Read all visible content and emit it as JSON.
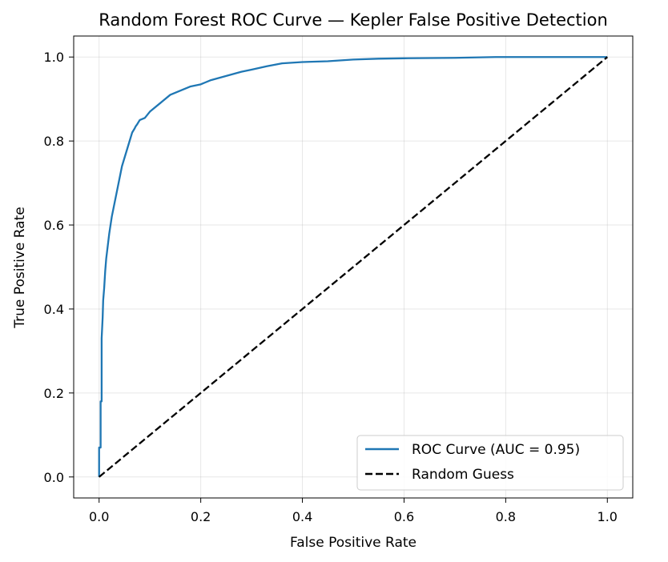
{
  "chart_data": {
    "type": "line",
    "title": "Random Forest ROC Curve — Kepler False Positive Detection",
    "xlabel": "False Positive Rate",
    "ylabel": "True Positive Rate",
    "xlim": [
      -0.05,
      1.05
    ],
    "ylim": [
      -0.05,
      1.05
    ],
    "grid": true,
    "legend_position": "lower-right",
    "xticks": [
      0.0,
      0.2,
      0.4,
      0.6,
      0.8,
      1.0
    ],
    "xtick_labels": [
      "0.0",
      "0.2",
      "0.4",
      "0.6",
      "0.8",
      "1.0"
    ],
    "yticks": [
      0.0,
      0.2,
      0.4,
      0.6,
      0.8,
      1.0
    ],
    "ytick_labels": [
      "0.0",
      "0.2",
      "0.4",
      "0.6",
      "0.8",
      "1.0"
    ],
    "series": [
      {
        "name": "ROC Curve (AUC = 0.95)",
        "color": "#1f77b4",
        "style": "solid",
        "x": [
          0.0,
          0.0,
          0.003,
          0.003,
          0.005,
          0.005,
          0.007,
          0.008,
          0.01,
          0.012,
          0.014,
          0.016,
          0.018,
          0.02,
          0.025,
          0.03,
          0.035,
          0.04,
          0.045,
          0.05,
          0.055,
          0.06,
          0.065,
          0.07,
          0.072,
          0.075,
          0.08,
          0.09,
          0.1,
          0.12,
          0.14,
          0.16,
          0.18,
          0.2,
          0.22,
          0.25,
          0.28,
          0.3,
          0.33,
          0.36,
          0.4,
          0.45,
          0.5,
          0.55,
          0.6,
          0.7,
          0.78,
          0.85,
          0.9,
          1.0
        ],
        "y": [
          0.0,
          0.07,
          0.07,
          0.18,
          0.18,
          0.33,
          0.38,
          0.42,
          0.45,
          0.49,
          0.52,
          0.54,
          0.56,
          0.58,
          0.62,
          0.65,
          0.68,
          0.71,
          0.74,
          0.76,
          0.78,
          0.8,
          0.82,
          0.83,
          0.835,
          0.84,
          0.85,
          0.855,
          0.87,
          0.89,
          0.91,
          0.92,
          0.93,
          0.935,
          0.945,
          0.955,
          0.965,
          0.97,
          0.978,
          0.985,
          0.988,
          0.99,
          0.994,
          0.996,
          0.997,
          0.998,
          1.0,
          1.0,
          1.0,
          1.0
        ]
      },
      {
        "name": "Random Guess",
        "color": "#000000",
        "style": "dashed",
        "x": [
          0.0,
          1.0
        ],
        "y": [
          0.0,
          1.0
        ]
      }
    ]
  }
}
